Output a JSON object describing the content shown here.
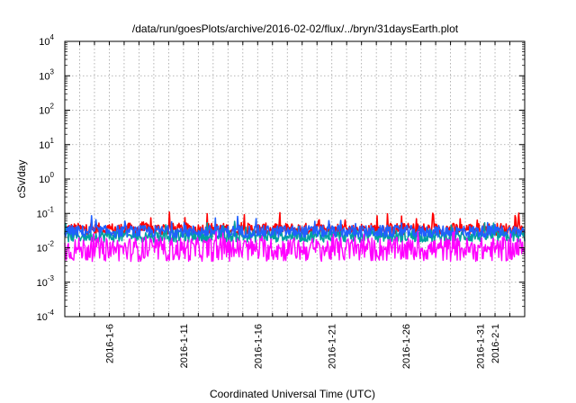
{
  "chart_data": {
    "type": "line",
    "title": "/data/run/goesPlots/archive/2016-02-02/flux/../bryn/31daysEarth.plot",
    "xlabel": "Coordinated Universal Time (UTC)",
    "ylabel": "cSv/day",
    "yscale": "log",
    "ylim": [
      0.0001,
      10000
    ],
    "y_ticks": [
      {
        "mantissa": "10",
        "exp": "-4"
      },
      {
        "mantissa": "10",
        "exp": "-3"
      },
      {
        "mantissa": "10",
        "exp": "-2"
      },
      {
        "mantissa": "10",
        "exp": "-1"
      },
      {
        "mantissa": "10",
        "exp": "0"
      },
      {
        "mantissa": "10",
        "exp": "1"
      },
      {
        "mantissa": "10",
        "exp": "2"
      },
      {
        "mantissa": "10",
        "exp": "3"
      },
      {
        "mantissa": "10",
        "exp": "4"
      }
    ],
    "xlim": [
      "2016-01-03",
      "2016-02-03"
    ],
    "x_tick_labels": [
      "2016-1-6",
      "2016-1-11",
      "2016-1-16",
      "2016-1-21",
      "2016-1-26",
      "2016-1-31",
      "2016-2-1"
    ],
    "x_tick_dates": [
      "2016-01-06",
      "2016-01-11",
      "2016-01-16",
      "2016-01-21",
      "2016-01-26",
      "2016-01-31",
      "2016-02-01"
    ],
    "grid": true,
    "series": [
      {
        "color": "#ff0000",
        "typical": 0.035,
        "min": 0.022,
        "max": 0.11
      },
      {
        "color": "#00a0a0",
        "typical": 0.022,
        "min": 0.012,
        "max": 0.06
      },
      {
        "color": "#2060ff",
        "typical": 0.03,
        "min": 0.02,
        "max": 0.09
      },
      {
        "color": "#ff00ff",
        "typical": 0.009,
        "min": 0.004,
        "max": 0.03
      }
    ]
  }
}
